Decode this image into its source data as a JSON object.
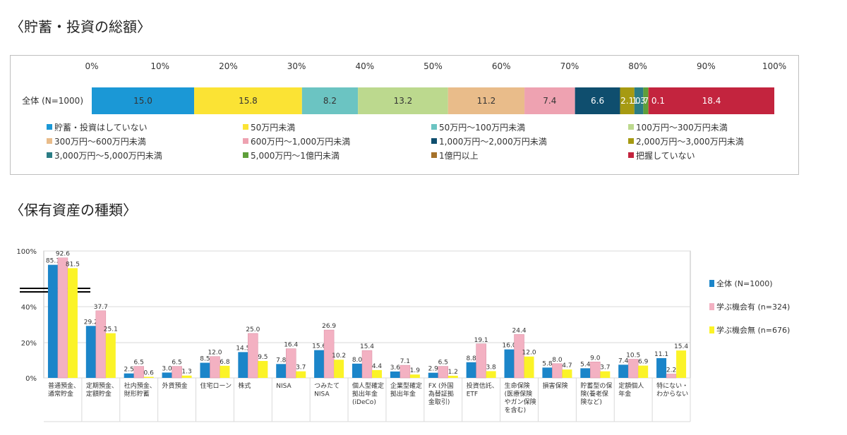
{
  "titles": {
    "first": "〈貯蓄・投資の総額〉",
    "second": "〈保有資産の種類〉"
  },
  "chart_data": [
    {
      "type": "bar",
      "orientation": "horizontal-stacked",
      "axis_ticks": [
        "0%",
        "10%",
        "20%",
        "30%",
        "40%",
        "50%",
        "60%",
        "70%",
        "80%",
        "90%",
        "100%"
      ],
      "categories": [
        "全体 (N=1000)"
      ],
      "segments": [
        {
          "name": "貯蓄・投資はしていない",
          "value": 15.0,
          "label": "15.0",
          "color": "#1b98d6"
        },
        {
          "name": "50万円未満",
          "value": 15.8,
          "label": "15.8",
          "color": "#fbe334"
        },
        {
          "name": "50万円～100万円未満",
          "value": 8.2,
          "label": "8.2",
          "color": "#6bc4c2"
        },
        {
          "name": "100万円～300万円未満",
          "value": 13.2,
          "label": "13.2",
          "color": "#bcd98e"
        },
        {
          "name": "300万円～600万円未満",
          "value": 11.2,
          "label": "11.2",
          "color": "#e9bc8a"
        },
        {
          "name": "600万円～1,000万円未満",
          "value": 7.4,
          "label": "7.4",
          "color": "#eea2b1"
        },
        {
          "name": "1,000万円～2,000万円未満",
          "value": 6.6,
          "label": "6.6",
          "color": "#0f4e6e"
        },
        {
          "name": "2,000万円～3,000万円未満",
          "value": 2.1,
          "label": "2.1",
          "color": "#a69a12"
        },
        {
          "name": "3,000万円～5,000万円未満",
          "value": 1.3,
          "label": "1.3",
          "color": "#2b7d85"
        },
        {
          "name": "5,000万円～1億円未満",
          "value": 0.7,
          "label": "0.7",
          "color": "#5e9f3a"
        },
        {
          "name": "1億円以上",
          "value": 0.1,
          "label": "0.1",
          "color": "#a5712a"
        },
        {
          "name": "把握していない",
          "value": 18.4,
          "label": "18.4",
          "color": "#c3243e"
        }
      ],
      "inline_labels": [
        "15.0",
        "15.8",
        "8.2",
        "13.2",
        "11.2",
        "7.4",
        "6.6",
        "2.1",
        "1.3",
        "0.7 0.1",
        "18.4"
      ],
      "legend_placement": "bottom"
    },
    {
      "type": "bar",
      "y_ticks": [
        "0%",
        "20%",
        "40%",
        "100%"
      ],
      "categories": [
        [
          "普通預金、",
          "通常貯金"
        ],
        [
          "定期預金、",
          "定額貯金"
        ],
        [
          "社内預金、",
          "財形貯蓄"
        ],
        [
          "外貨預金"
        ],
        [
          "住宅ローン"
        ],
        [
          "株式"
        ],
        [
          "NISA"
        ],
        [
          "つみたて",
          "NISA"
        ],
        [
          "個人型確定",
          "拠出年金",
          "(iDeCo)"
        ],
        [
          "企業型確定",
          "拠出年金"
        ],
        [
          "FX (外国",
          "為替証拠",
          "金取引)"
        ],
        [
          "投資信託、",
          "ETF"
        ],
        [
          "生命保険",
          "(医療保険",
          "やガン保険",
          "を含む)"
        ],
        [
          "損害保険"
        ],
        [
          "貯蓄型の保",
          "険(養老保",
          "険など)"
        ],
        [
          "定額個人",
          "年金"
        ],
        [
          "特にない・",
          "わからない"
        ]
      ],
      "series": [
        {
          "name": "全体 (N=1000)",
          "color": "#1b85c9",
          "values": [
            85.1,
            29.2,
            2.5,
            3.0,
            8.5,
            14.5,
            7.8,
            15.6,
            8.0,
            3.6,
            2.9,
            8.8,
            16.0,
            5.8,
            5.4,
            7.4,
            11.1
          ],
          "labels": [
            "85.1",
            "29.2",
            "2.5",
            "3.0",
            "8.5",
            "14.5",
            "7.8",
            "15.6",
            "8.0",
            "3.6",
            "2.9",
            "8.8",
            "16.0",
            "5.8",
            "5.4",
            "7.4",
            "11.1"
          ]
        },
        {
          "name": "学ぶ機会有 (n=324)",
          "color": "#f3b1c2",
          "values": [
            92.6,
            37.7,
            6.5,
            6.5,
            12.0,
            25.0,
            16.4,
            26.9,
            15.4,
            7.1,
            6.5,
            19.1,
            24.4,
            8.0,
            9.0,
            10.5,
            2.2
          ],
          "labels": [
            "92.6",
            "37.7",
            "6.5",
            "6.5",
            "12.0",
            "25.0",
            "16.4",
            "26.9",
            "15.4",
            "7.1",
            "6.5",
            "19.1",
            "24.4",
            "8.0",
            "9.0",
            "10.5",
            "2.2"
          ]
        },
        {
          "name": "学ぶ機会無 (n=676)",
          "color": "#fbf327",
          "values": [
            81.5,
            25.1,
            0.6,
            1.3,
            6.8,
            9.5,
            3.7,
            10.2,
            4.4,
            1.9,
            1.2,
            3.8,
            12.0,
            4.7,
            3.7,
            6.9,
            15.4
          ],
          "labels": [
            "81.5",
            "25.1",
            "0.6",
            "1.3",
            "6.8",
            "9.5",
            "3.7",
            "10.2",
            "4.4",
            "1.9",
            "1.2",
            "3.8",
            "12.0",
            "4.7",
            "3.7",
            "6.9",
            "15.4"
          ]
        }
      ],
      "axis_break": true,
      "grid": true,
      "legend_placement": "right"
    }
  ]
}
